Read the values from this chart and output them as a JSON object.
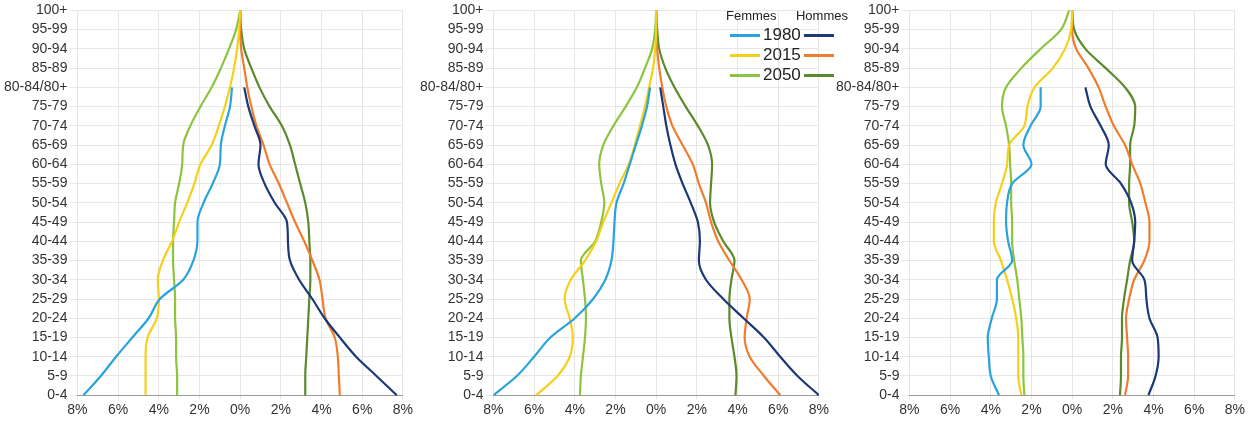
{
  "chart_data": [
    {
      "type": "line",
      "orientation": "horizontal",
      "marker": "none",
      "grid": true,
      "legend": false,
      "categories": [
        "100+",
        "95-99",
        "90-94",
        "85-89",
        "80-84/80+",
        "75-79",
        "70-74",
        "65-69",
        "60-64",
        "55-59",
        "50-54",
        "45-49",
        "40-44",
        "35-39",
        "30-34",
        "25-29",
        "20-24",
        "15-19",
        "10-14",
        "5-9",
        "0-4"
      ],
      "xlim": [
        -8,
        8
      ],
      "xticks": [
        {
          "value": -8,
          "label": "8%"
        },
        {
          "value": -6,
          "label": "6%"
        },
        {
          "value": -4,
          "label": "4%"
        },
        {
          "value": -2,
          "label": "2%"
        },
        {
          "value": 0,
          "label": "0%"
        },
        {
          "value": 2,
          "label": "2%"
        },
        {
          "value": 4,
          "label": "4%"
        },
        {
          "value": 6,
          "label": "6%"
        },
        {
          "value": 8,
          "label": "8%"
        }
      ],
      "series": [
        {
          "color": "#29a3dc",
          "values": [
            null,
            null,
            null,
            null,
            -0.4,
            -0.5,
            -0.75,
            -0.95,
            -1.0,
            -1.35,
            -1.8,
            -2.1,
            -2.1,
            -2.3,
            -2.8,
            -3.95,
            -4.5,
            -5.3,
            -6.1,
            -6.85,
            -7.7
          ]
        },
        {
          "color": "#f5cf1a",
          "values": [
            0,
            -0.05,
            -0.15,
            -0.3,
            -0.5,
            -0.75,
            -1.05,
            -1.4,
            -1.95,
            -2.25,
            -2.6,
            -3.0,
            -3.35,
            -3.8,
            -4.05,
            -4.0,
            -4.1,
            -4.55,
            -4.65,
            -4.65,
            -4.65
          ]
        },
        {
          "color": "#8cc43f",
          "values": [
            0,
            -0.2,
            -0.55,
            -0.95,
            -1.4,
            -1.95,
            -2.45,
            -2.8,
            -2.85,
            -3.0,
            -3.2,
            -3.25,
            -3.3,
            -3.3,
            -3.25,
            -3.2,
            -3.2,
            -3.15,
            -3.15,
            -3.1,
            -3.1
          ]
        },
        {
          "color": "#1c3877",
          "values": [
            null,
            null,
            null,
            null,
            0.2,
            0.4,
            0.7,
            1.0,
            0.9,
            1.2,
            1.7,
            2.3,
            2.35,
            2.45,
            2.9,
            3.55,
            4.15,
            4.9,
            5.7,
            6.7,
            7.7
          ]
        },
        {
          "color": "#ef7d2f",
          "values": [
            0,
            0,
            0.05,
            0.2,
            0.35,
            0.55,
            0.8,
            1.15,
            1.45,
            1.9,
            2.3,
            2.7,
            3.15,
            3.55,
            3.9,
            4.05,
            4.2,
            4.65,
            4.8,
            4.85,
            4.9
          ]
        },
        {
          "color": "#5b8a2d",
          "values": [
            0,
            0.05,
            0.2,
            0.55,
            0.95,
            1.45,
            2.05,
            2.45,
            2.7,
            2.95,
            3.2,
            3.35,
            3.4,
            3.45,
            3.45,
            3.4,
            3.35,
            3.3,
            3.25,
            3.2,
            3.2
          ]
        }
      ]
    },
    {
      "type": "line",
      "orientation": "horizontal",
      "marker": "none",
      "grid": true,
      "legend": "top right",
      "annotations": [
        "Femmes",
        "Hommes"
      ],
      "categories": [
        "100+",
        "95-99",
        "90-94",
        "85-89",
        "80-84/80+",
        "75-79",
        "70-74",
        "65-69",
        "60-64",
        "55-59",
        "50-54",
        "45-49",
        "40-44",
        "35-39",
        "30-34",
        "25-29",
        "20-24",
        "15-19",
        "10-14",
        "5-9",
        "0-4"
      ],
      "xlim": [
        -8,
        8
      ],
      "xticks": [
        {
          "value": -8,
          "label": "8%"
        },
        {
          "value": -6,
          "label": "6%"
        },
        {
          "value": -4,
          "label": "4%"
        },
        {
          "value": -2,
          "label": "2%"
        },
        {
          "value": 0,
          "label": "0%"
        },
        {
          "value": 2,
          "label": "2%"
        },
        {
          "value": 4,
          "label": "4%"
        },
        {
          "value": 6,
          "label": "6%"
        },
        {
          "value": 8,
          "label": "8%"
        }
      ],
      "series": [
        {
          "name": "1980",
          "color": "#29a3dc",
          "values": [
            null,
            null,
            null,
            null,
            -0.3,
            -0.45,
            -0.7,
            -1.0,
            -1.3,
            -1.6,
            -1.95,
            -2.05,
            -2.1,
            -2.2,
            -2.5,
            -3.1,
            -4.0,
            -5.2,
            -6.0,
            -6.85,
            -8.0
          ]
        },
        {
          "name": "2015",
          "color": "#f5cf1a",
          "values": [
            0,
            0,
            -0.05,
            -0.15,
            -0.35,
            -0.55,
            -0.8,
            -1.05,
            -1.35,
            -1.8,
            -2.2,
            -2.6,
            -2.95,
            -3.5,
            -4.2,
            -4.5,
            -4.25,
            -4.1,
            -4.25,
            -4.85,
            -5.9
          ]
        },
        {
          "name": "2050",
          "color": "#8cc43f",
          "values": [
            0,
            -0.05,
            -0.2,
            -0.55,
            -0.95,
            -1.5,
            -2.1,
            -2.6,
            -2.8,
            -2.7,
            -2.55,
            -2.7,
            -3.0,
            -3.7,
            -3.6,
            -3.5,
            -3.45,
            -3.5,
            -3.6,
            -3.7,
            -3.75
          ]
        },
        {
          "color": "#1c3877",
          "values": [
            null,
            null,
            null,
            null,
            0.2,
            0.35,
            0.5,
            0.7,
            0.95,
            1.3,
            1.7,
            2.05,
            2.15,
            2.1,
            2.45,
            3.3,
            4.3,
            5.3,
            6.1,
            6.95,
            8.0
          ]
        },
        {
          "color": "#ef7d2f",
          "values": [
            0,
            0,
            0.05,
            0.15,
            0.3,
            0.5,
            0.8,
            1.3,
            1.8,
            2.1,
            2.45,
            2.7,
            3.05,
            3.6,
            4.2,
            4.6,
            4.45,
            4.35,
            4.6,
            5.3,
            6.1
          ]
        },
        {
          "color": "#5b8a2d",
          "values": [
            0,
            0.05,
            0.15,
            0.45,
            0.9,
            1.45,
            2.05,
            2.55,
            2.75,
            2.7,
            2.65,
            2.85,
            3.3,
            3.85,
            3.7,
            3.6,
            3.6,
            3.7,
            3.85,
            3.95,
            3.9
          ]
        }
      ]
    },
    {
      "type": "line",
      "orientation": "horizontal",
      "marker": "none",
      "grid": true,
      "legend": false,
      "categories": [
        "100+",
        "95-99",
        "90-94",
        "85-89",
        "80-84/80+",
        "75-79",
        "70-74",
        "65-69",
        "60-64",
        "55-59",
        "50-54",
        "45-49",
        "40-44",
        "35-39",
        "30-34",
        "25-29",
        "20-24",
        "15-19",
        "10-14",
        "5-9",
        "0-4"
      ],
      "xlim": [
        -8,
        8
      ],
      "xticks": [
        {
          "value": -8,
          "label": "8%"
        },
        {
          "value": -6,
          "label": "6%"
        },
        {
          "value": -4,
          "label": "4%"
        },
        {
          "value": -2,
          "label": "2%"
        },
        {
          "value": 0,
          "label": "0%"
        },
        {
          "value": 2,
          "label": "2%"
        },
        {
          "value": 4,
          "label": "4%"
        },
        {
          "value": 6,
          "label": "6%"
        },
        {
          "value": 8,
          "label": "8%"
        }
      ],
      "series": [
        {
          "color": "#29a3dc",
          "values": [
            null,
            null,
            null,
            null,
            -1.55,
            -1.55,
            -2.05,
            -2.4,
            -2.0,
            -2.95,
            -3.2,
            -3.25,
            -3.15,
            -2.95,
            -3.7,
            -3.7,
            -3.95,
            -4.15,
            -4.1,
            -4.0,
            -3.6
          ]
        },
        {
          "color": "#f5cf1a",
          "values": [
            0,
            -0.05,
            -0.35,
            -0.95,
            -1.85,
            -2.2,
            -2.35,
            -3.1,
            -3.2,
            -3.45,
            -3.75,
            -3.85,
            -3.85,
            -3.5,
            -3.2,
            -2.95,
            -2.75,
            -2.65,
            -2.65,
            -2.65,
            -2.5
          ]
        },
        {
          "color": "#8cc43f",
          "values": [
            -0.15,
            -0.55,
            -1.55,
            -2.5,
            -3.25,
            -3.45,
            -3.25,
            -3.1,
            -3.05,
            -3.0,
            -3.0,
            -2.95,
            -2.95,
            -2.85,
            -2.7,
            -2.6,
            -2.5,
            -2.45,
            -2.4,
            -2.4,
            -2.35
          ]
        },
        {
          "color": "#1c3877",
          "values": [
            null,
            null,
            null,
            null,
            0.65,
            0.9,
            1.4,
            1.8,
            1.65,
            2.4,
            2.9,
            3.1,
            3.05,
            2.95,
            3.55,
            3.65,
            3.8,
            4.2,
            4.25,
            4.1,
            3.75
          ]
        },
        {
          "color": "#ef7d2f",
          "values": [
            0,
            0,
            0.2,
            0.8,
            1.3,
            1.65,
            2.05,
            2.6,
            2.95,
            3.35,
            3.6,
            3.8,
            3.8,
            3.55,
            3.05,
            2.8,
            2.65,
            2.7,
            2.75,
            2.75,
            2.6
          ]
        },
        {
          "color": "#5b8a2d",
          "values": [
            0,
            0.1,
            0.65,
            1.65,
            2.6,
            3.1,
            3.05,
            2.85,
            2.85,
            2.8,
            2.8,
            2.95,
            3.05,
            2.85,
            2.7,
            2.55,
            2.45,
            2.45,
            2.4,
            2.4,
            2.35
          ]
        }
      ]
    }
  ]
}
